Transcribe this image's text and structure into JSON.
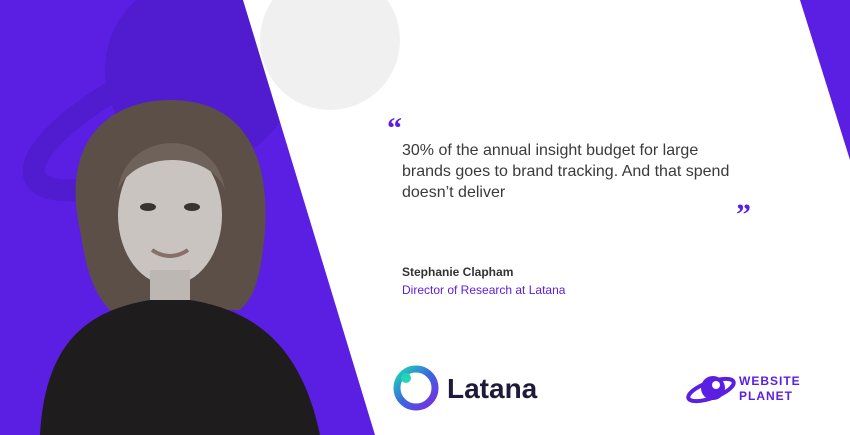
{
  "quote": {
    "open_mark": "“",
    "text": "30% of the annual insight budget for large brands goes to brand tracking. And that spend doesn’t deliver",
    "close_mark": "”"
  },
  "person": {
    "name": "Stephanie Clapham",
    "role": "Director of Research at Latana"
  },
  "logos": {
    "company": "Latana",
    "publisher_line1": "WEBSITE",
    "publisher_line2": "PLANET"
  }
}
